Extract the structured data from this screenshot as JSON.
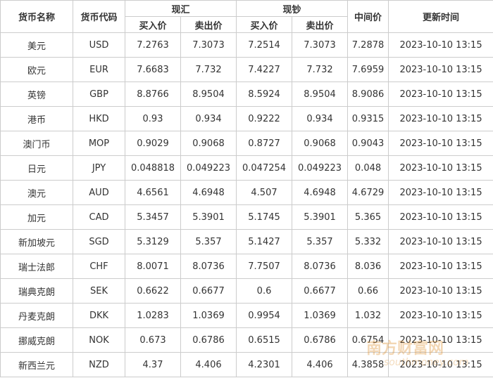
{
  "table": {
    "header": {
      "top": [
        "货币名称",
        "货币代码",
        "现汇",
        "现钞",
        "中间价",
        "更新时间"
      ],
      "sub": [
        "买入价",
        "卖出价",
        "买入价",
        "卖出价"
      ]
    },
    "rows": [
      [
        "美元",
        "USD",
        "7.2763",
        "7.3073",
        "7.2514",
        "7.3073",
        "7.2878",
        "2023-10-10 13:15"
      ],
      [
        "欧元",
        "EUR",
        "7.6683",
        "7.732",
        "7.4227",
        "7.732",
        "7.6959",
        "2023-10-10 13:15"
      ],
      [
        "英镑",
        "GBP",
        "8.8766",
        "8.9504",
        "8.5924",
        "8.9504",
        "8.9086",
        "2023-10-10 13:15"
      ],
      [
        "港币",
        "HKD",
        "0.93",
        "0.934",
        "0.9222",
        "0.934",
        "0.9315",
        "2023-10-10 13:15"
      ],
      [
        "澳门币",
        "MOP",
        "0.9029",
        "0.9068",
        "0.8727",
        "0.9068",
        "0.9043",
        "2023-10-10 13:15"
      ],
      [
        "日元",
        "JPY",
        "0.048818",
        "0.049223",
        "0.047254",
        "0.049223",
        "0.048",
        "2023-10-10 13:15"
      ],
      [
        "澳元",
        "AUD",
        "4.6561",
        "4.6948",
        "4.507",
        "4.6948",
        "4.6729",
        "2023-10-10 13:15"
      ],
      [
        "加元",
        "CAD",
        "5.3457",
        "5.3901",
        "5.1745",
        "5.3901",
        "5.365",
        "2023-10-10 13:15"
      ],
      [
        "新加坡元",
        "SGD",
        "5.3129",
        "5.357",
        "5.1427",
        "5.357",
        "5.332",
        "2023-10-10 13:15"
      ],
      [
        "瑞士法郎",
        "CHF",
        "8.0071",
        "8.0736",
        "7.7507",
        "8.0736",
        "8.036",
        "2023-10-10 13:15"
      ],
      [
        "瑞典克朗",
        "SEK",
        "0.6622",
        "0.6677",
        "0.6",
        "0.6677",
        "0.66",
        "2023-10-10 13:15"
      ],
      [
        "丹麦克朗",
        "DKK",
        "1.0283",
        "1.0369",
        "0.9954",
        "1.0369",
        "1.032",
        "2023-10-10 13:15"
      ],
      [
        "挪威克朗",
        "NOK",
        "0.673",
        "0.6786",
        "0.6515",
        "0.6786",
        "0.6754",
        "2023-10-10 13:15"
      ],
      [
        "新西兰元",
        "NZD",
        "4.37",
        "4.406",
        "4.2301",
        "4.406",
        "4.3858",
        "2023-10-10 13:15"
      ]
    ]
  },
  "watermark": {
    "name": "南方财富网",
    "site": "southmoney.com"
  }
}
